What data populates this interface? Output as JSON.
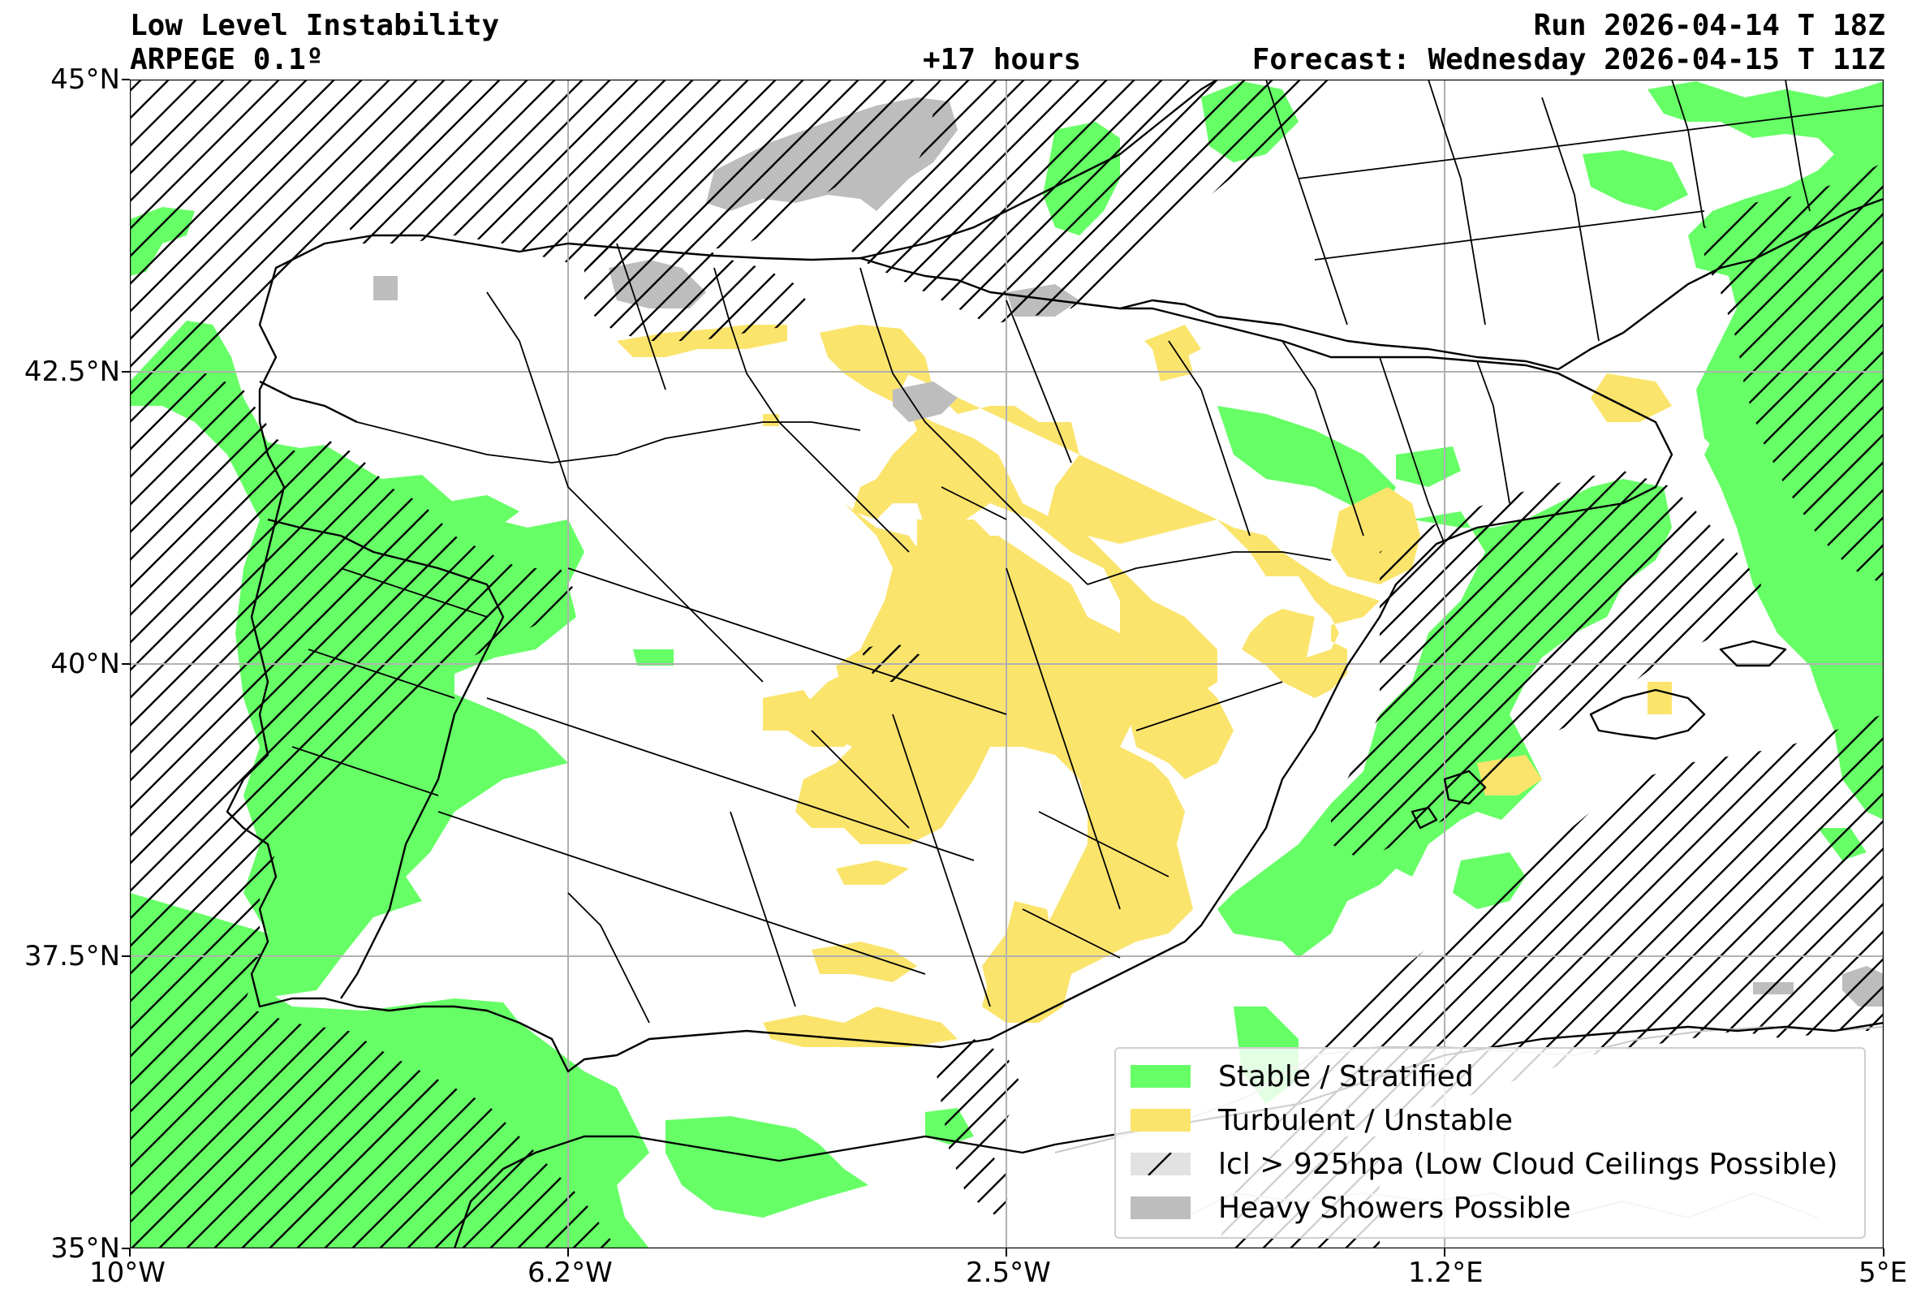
{
  "header": {
    "title": "Low Level Instability",
    "model": "ARPEGE 0.1º",
    "lead": "+17 hours",
    "run": "Run 2026-04-14 T 18Z",
    "forecast": "Forecast: Wednesday 2026-04-15 T 11Z"
  },
  "axes": {
    "lat_ticks": [
      "45°N",
      "42.5°N",
      "40°N",
      "37.5°N",
      "35°N"
    ],
    "lon_ticks": [
      "10°W",
      "6.2°W",
      "2.5°W",
      "1.2°E",
      "5°E"
    ],
    "lat_range": [
      35,
      45
    ],
    "lon_range": [
      -10,
      5
    ],
    "grid": true
  },
  "legend": {
    "placement": "bottom-right",
    "items": [
      {
        "label": "Stable / Stratified",
        "color": "#66ff66"
      },
      {
        "label": "Turbulent / Unstable",
        "color": "#fbe46c"
      },
      {
        "label": "lcl > 925hpa (Low Cloud Ceilings Possible)",
        "color": "#d9d9d9"
      },
      {
        "label": "Heavy Showers Possible",
        "color": "#bdbdbd"
      }
    ]
  },
  "colors": {
    "stable": "#66ff66",
    "unstable": "#fbe46c",
    "showers": "#bdbdbd",
    "grid": "#b0b0b0"
  }
}
